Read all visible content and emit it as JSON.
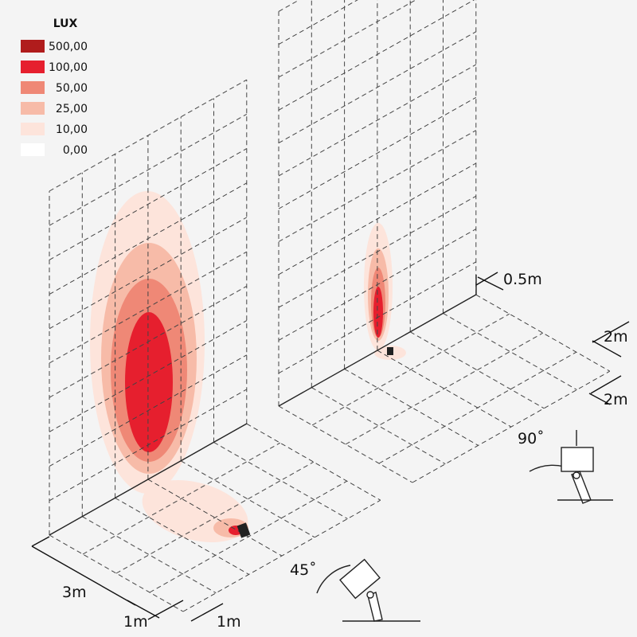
{
  "legend": {
    "title": "LUX",
    "items": [
      {
        "label": "500,00",
        "color": "#b01c1c"
      },
      {
        "label": "100,00",
        "color": "#e61f2e"
      },
      {
        "label": "50,00",
        "color": "#ef8876"
      },
      {
        "label": "25,00",
        "color": "#f7bba8"
      },
      {
        "label": "10,00",
        "color": "#fde4db"
      },
      {
        "label": "0,00",
        "color": "#ffffff"
      }
    ]
  },
  "dimensions": {
    "height_step": "0.5m",
    "right_depth": "2m",
    "right_width": "2m",
    "left_width": "3m",
    "left_depth": "1m",
    "left_height": "1m"
  },
  "angles": {
    "right": "90˚",
    "left": "45˚"
  }
}
